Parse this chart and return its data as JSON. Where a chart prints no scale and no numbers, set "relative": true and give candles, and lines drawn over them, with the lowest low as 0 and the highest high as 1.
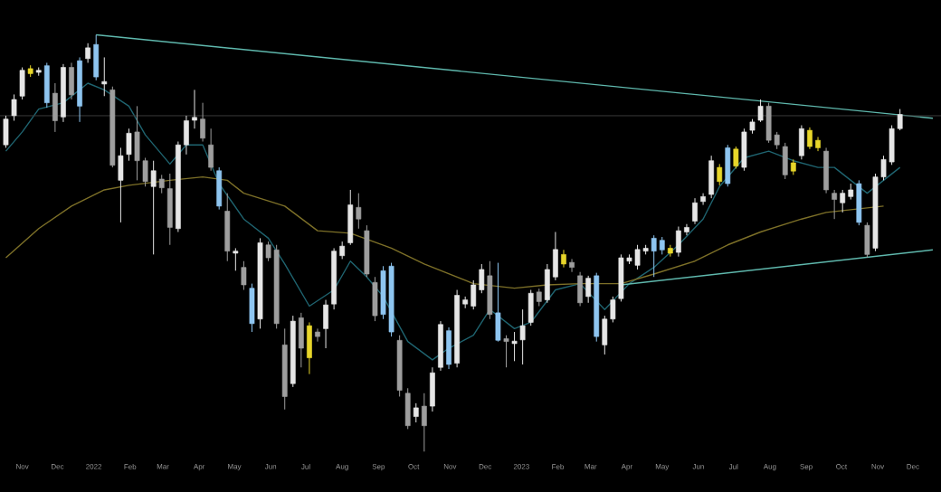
{
  "chart_data": {
    "type": "candlestick",
    "relative": true,
    "x": [
      "2021-10-18",
      "2021-10-25",
      "2021-11-01",
      "2021-11-08",
      "2021-11-15",
      "2021-11-22",
      "2021-11-29",
      "2021-12-06",
      "2021-12-13",
      "2021-12-20",
      "2021-12-27",
      "2022-01-03",
      "2022-01-10",
      "2022-01-17",
      "2022-01-24",
      "2022-01-31",
      "2022-02-07",
      "2022-02-14",
      "2022-02-21",
      "2022-02-28",
      "2022-03-07",
      "2022-03-14",
      "2022-03-21",
      "2022-03-28",
      "2022-04-04",
      "2022-04-11",
      "2022-04-18",
      "2022-04-25",
      "2022-05-02",
      "2022-05-09",
      "2022-05-16",
      "2022-05-23",
      "2022-05-30",
      "2022-06-06",
      "2022-06-13",
      "2022-06-20",
      "2022-06-27",
      "2022-07-04",
      "2022-07-11",
      "2022-07-18",
      "2022-07-25",
      "2022-08-01",
      "2022-08-08",
      "2022-08-15",
      "2022-08-22",
      "2022-08-29",
      "2022-09-05",
      "2022-09-12",
      "2022-09-19",
      "2022-09-26",
      "2022-10-03",
      "2022-10-10",
      "2022-10-17",
      "2022-10-24",
      "2022-10-31",
      "2022-11-07",
      "2022-11-14",
      "2022-11-21",
      "2022-11-28",
      "2022-12-05",
      "2022-12-12",
      "2022-12-19",
      "2022-12-26",
      "2023-01-02",
      "2023-01-09",
      "2023-01-16",
      "2023-01-23",
      "2023-01-30",
      "2023-02-06",
      "2023-02-13",
      "2023-02-20",
      "2023-02-27",
      "2023-03-06",
      "2023-03-13",
      "2023-03-20",
      "2023-03-27",
      "2023-04-03",
      "2023-04-10",
      "2023-04-17",
      "2023-04-24",
      "2023-05-01",
      "2023-05-08",
      "2023-05-15",
      "2023-05-22",
      "2023-05-29",
      "2023-06-05",
      "2023-06-12",
      "2023-06-19",
      "2023-06-26",
      "2023-07-03",
      "2023-07-10",
      "2023-07-17",
      "2023-07-24",
      "2023-07-31",
      "2023-08-07",
      "2023-08-14",
      "2023-08-21",
      "2023-08-28",
      "2023-09-04",
      "2023-09-11",
      "2023-09-18",
      "2023-09-25",
      "2023-10-02",
      "2023-10-09",
      "2023-10-16",
      "2023-10-23",
      "2023-10-30",
      "2023-11-06",
      "2023-11-13",
      "2023-11-20"
    ],
    "ohlc": [
      [
        0.736,
        0.806,
        0.729,
        0.798
      ],
      [
        0.806,
        0.857,
        0.794,
        0.845
      ],
      [
        0.853,
        0.922,
        0.845,
        0.915
      ],
      [
        0.907,
        0.927,
        0.899,
        0.919
      ],
      [
        0.91,
        0.922,
        0.902,
        0.915
      ],
      [
        0.926,
        0.933,
        0.825,
        0.837
      ],
      [
        0.86,
        0.884,
        0.767,
        0.794
      ],
      [
        0.803,
        0.93,
        0.791,
        0.922
      ],
      [
        0.922,
        0.933,
        0.845,
        0.856
      ],
      [
        0.829,
        0.946,
        0.791,
        0.938
      ],
      [
        0.943,
        0.98,
        0.933,
        0.969
      ],
      [
        0.977,
        1.0,
        0.891,
        0.899
      ],
      [
        0.882,
        0.946,
        0.853,
        0.888
      ],
      [
        0.868,
        0.876,
        0.682,
        0.687
      ],
      [
        0.651,
        0.729,
        0.55,
        0.71
      ],
      [
        0.713,
        0.775,
        0.698,
        0.764
      ],
      [
        0.767,
        0.829,
        0.651,
        0.698
      ],
      [
        0.698,
        0.705,
        0.636,
        0.648
      ],
      [
        0.636,
        0.698,
        0.473,
        0.674
      ],
      [
        0.654,
        0.664,
        0.62,
        0.633
      ],
      [
        0.631,
        0.667,
        0.496,
        0.538
      ],
      [
        0.535,
        0.744,
        0.527,
        0.736
      ],
      [
        0.736,
        0.806,
        0.713,
        0.794
      ],
      [
        0.795,
        0.868,
        0.775,
        0.802
      ],
      [
        0.798,
        0.837,
        0.744,
        0.752
      ],
      [
        0.736,
        0.775,
        0.674,
        0.682
      ],
      [
        0.674,
        0.682,
        0.581,
        0.589
      ],
      [
        0.577,
        0.62,
        0.457,
        0.481
      ],
      [
        0.476,
        0.488,
        0.434,
        0.481
      ],
      [
        0.442,
        0.457,
        0.388,
        0.4
      ],
      [
        0.392,
        0.403,
        0.287,
        0.307
      ],
      [
        0.318,
        0.512,
        0.295,
        0.501
      ],
      [
        0.496,
        0.504,
        0.457,
        0.465
      ],
      [
        0.484,
        0.496,
        0.295,
        0.307
      ],
      [
        0.256,
        0.295,
        0.101,
        0.132
      ],
      [
        0.163,
        0.326,
        0.155,
        0.313
      ],
      [
        0.321,
        0.333,
        0.202,
        0.248
      ],
      [
        0.225,
        0.31,
        0.186,
        0.302
      ],
      [
        0.287,
        0.295,
        0.264,
        0.276
      ],
      [
        0.295,
        0.364,
        0.248,
        0.352
      ],
      [
        0.354,
        0.488,
        0.341,
        0.481
      ],
      [
        0.47,
        0.504,
        0.462,
        0.493
      ],
      [
        0.501,
        0.628,
        0.496,
        0.592
      ],
      [
        0.586,
        0.62,
        0.535,
        0.558
      ],
      [
        0.53,
        0.543,
        0.419,
        0.426
      ],
      [
        0.406,
        0.419,
        0.313,
        0.326
      ],
      [
        0.434,
        0.445,
        0.318,
        0.329
      ],
      [
        0.445,
        0.453,
        0.276,
        0.287
      ],
      [
        0.267,
        0.279,
        0.132,
        0.147
      ],
      [
        0.14,
        0.152,
        0.054,
        0.062
      ],
      [
        0.084,
        0.116,
        0.07,
        0.105
      ],
      [
        0.109,
        0.14,
        0.0,
        0.062
      ],
      [
        0.109,
        0.202,
        0.096,
        0.189
      ],
      [
        0.202,
        0.313,
        0.194,
        0.305
      ],
      [
        0.29,
        0.298,
        0.198,
        0.209
      ],
      [
        0.212,
        0.388,
        0.202,
        0.375
      ],
      [
        0.354,
        0.372,
        0.344,
        0.364
      ],
      [
        0.349,
        0.411,
        0.341,
        0.4
      ],
      [
        0.388,
        0.45,
        0.38,
        0.437
      ],
      [
        0.422,
        0.457,
        0.318,
        0.329
      ],
      [
        0.333,
        0.453,
        0.264,
        0.267
      ],
      [
        0.271,
        0.279,
        0.202,
        0.264
      ],
      [
        0.259,
        0.287,
        0.217,
        0.265
      ],
      [
        0.268,
        0.341,
        0.209,
        0.302
      ],
      [
        0.31,
        0.388,
        0.302,
        0.38
      ],
      [
        0.383,
        0.391,
        0.349,
        0.36
      ],
      [
        0.364,
        0.45,
        0.357,
        0.437
      ],
      [
        0.419,
        0.527,
        0.411,
        0.485
      ],
      [
        0.45,
        0.484,
        0.442,
        0.473
      ],
      [
        0.454,
        0.462,
        0.431,
        0.442
      ],
      [
        0.422,
        0.431,
        0.349,
        0.357
      ],
      [
        0.372,
        0.422,
        0.357,
        0.416
      ],
      [
        0.422,
        0.429,
        0.264,
        0.276
      ],
      [
        0.256,
        0.326,
        0.233,
        0.318
      ],
      [
        0.318,
        0.372,
        0.31,
        0.364
      ],
      [
        0.367,
        0.473,
        0.36,
        0.465
      ],
      [
        0.457,
        0.473,
        0.45,
        0.465
      ],
      [
        0.447,
        0.496,
        0.437,
        0.485
      ],
      [
        0.481,
        0.496,
        0.473,
        0.488
      ],
      [
        0.512,
        0.519,
        0.419,
        0.481
      ],
      [
        0.507,
        0.515,
        0.473,
        0.484
      ],
      [
        0.476,
        0.496,
        0.468,
        0.488
      ],
      [
        0.478,
        0.54,
        0.468,
        0.53
      ],
      [
        0.527,
        0.546,
        0.519,
        0.538
      ],
      [
        0.553,
        0.608,
        0.546,
        0.597
      ],
      [
        0.6,
        0.62,
        0.592,
        0.612
      ],
      [
        0.617,
        0.71,
        0.608,
        0.698
      ],
      [
        0.648,
        0.69,
        0.639,
        0.682
      ],
      [
        0.729,
        0.736,
        0.636,
        0.643
      ],
      [
        0.685,
        0.732,
        0.679,
        0.726
      ],
      [
        0.682,
        0.775,
        0.674,
        0.767
      ],
      [
        0.771,
        0.798,
        0.763,
        0.791
      ],
      [
        0.795,
        0.845,
        0.791,
        0.829
      ],
      [
        0.829,
        0.837,
        0.741,
        0.747
      ],
      [
        0.76,
        0.767,
        0.726,
        0.736
      ],
      [
        0.732,
        0.741,
        0.654,
        0.664
      ],
      [
        0.673,
        0.701,
        0.664,
        0.693
      ],
      [
        0.71,
        0.783,
        0.701,
        0.775
      ],
      [
        0.732,
        0.778,
        0.726,
        0.771
      ],
      [
        0.729,
        0.755,
        0.721,
        0.747
      ],
      [
        0.721,
        0.729,
        0.62,
        0.628
      ],
      [
        0.62,
        0.628,
        0.558,
        0.605
      ],
      [
        0.597,
        0.628,
        0.574,
        0.62
      ],
      [
        0.612,
        0.643,
        0.605,
        0.628
      ],
      [
        0.643,
        0.651,
        0.543,
        0.55
      ],
      [
        0.543,
        0.55,
        0.465,
        0.473
      ],
      [
        0.488,
        0.667,
        0.481,
        0.659
      ],
      [
        0.659,
        0.71,
        0.651,
        0.701
      ],
      [
        0.695,
        0.783,
        0.688,
        0.775
      ],
      [
        0.775,
        0.822,
        0.771,
        0.809
      ]
    ],
    "colors": [
      "#e6e6e6",
      "#e6e6e6",
      "#e6e6e6",
      "#e8d62a",
      "#e6e6e6",
      "#8ec5f0",
      "#9e9e9e",
      "#e6e6e6",
      "#9e9e9e",
      "#8ec5f0",
      "#e6e6e6",
      "#8ec5f0",
      "#e6e6e6",
      "#9e9e9e",
      "#e6e6e6",
      "#e6e6e6",
      "#9e9e9e",
      "#9e9e9e",
      "#e6e6e6",
      "#9e9e9e",
      "#9e9e9e",
      "#e6e6e6",
      "#e6e6e6",
      "#e6e6e6",
      "#9e9e9e",
      "#9e9e9e",
      "#8ec5f0",
      "#9e9e9e",
      "#e6e6e6",
      "#9e9e9e",
      "#8ec5f0",
      "#e6e6e6",
      "#9e9e9e",
      "#9e9e9e",
      "#9e9e9e",
      "#e6e6e6",
      "#9e9e9e",
      "#e8d62a",
      "#9e9e9e",
      "#e6e6e6",
      "#e6e6e6",
      "#e6e6e6",
      "#e6e6e6",
      "#9e9e9e",
      "#9e9e9e",
      "#9e9e9e",
      "#8ec5f0",
      "#8ec5f0",
      "#9e9e9e",
      "#9e9e9e",
      "#e6e6e6",
      "#9e9e9e",
      "#e6e6e6",
      "#e6e6e6",
      "#8ec5f0",
      "#e6e6e6",
      "#e6e6e6",
      "#e6e6e6",
      "#e6e6e6",
      "#9e9e9e",
      "#8ec5f0",
      "#9e9e9e",
      "#e6e6e6",
      "#e6e6e6",
      "#e6e6e6",
      "#9e9e9e",
      "#e6e6e6",
      "#e6e6e6",
      "#e8d62a",
      "#9e9e9e",
      "#9e9e9e",
      "#e6e6e6",
      "#8ec5f0",
      "#e6e6e6",
      "#e6e6e6",
      "#e6e6e6",
      "#e6e6e6",
      "#e6e6e6",
      "#e6e6e6",
      "#8ec5f0",
      "#8ec5f0",
      "#e8d62a",
      "#e6e6e6",
      "#e6e6e6",
      "#e6e6e6",
      "#e6e6e6",
      "#e6e6e6",
      "#e8d62a",
      "#8ec5f0",
      "#e8d62a",
      "#e6e6e6",
      "#e6e6e6",
      "#e6e6e6",
      "#9e9e9e",
      "#9e9e9e",
      "#9e9e9e",
      "#e8d62a",
      "#e6e6e6",
      "#e8d62a",
      "#e8d62a",
      "#9e9e9e",
      "#9e9e9e",
      "#e6e6e6",
      "#e6e6e6",
      "#8ec5f0",
      "#9e9e9e",
      "#e6e6e6",
      "#e6e6e6",
      "#e6e6e6",
      "#e6e6e6"
    ],
    "series": [
      {
        "type": "line",
        "color": "#1f6470",
        "x": [
          "2021-10-18",
          "2021-11-01",
          "2021-11-15",
          "2021-12-06",
          "2021-12-27",
          "2022-01-10",
          "2022-01-31",
          "2022-02-14",
          "2022-03-07",
          "2022-03-21",
          "2022-04-04",
          "2022-04-18",
          "2022-05-09",
          "2022-05-30",
          "2022-06-13",
          "2022-07-04",
          "2022-07-25",
          "2022-08-08",
          "2022-08-22",
          "2022-09-05",
          "2022-09-26",
          "2022-10-17",
          "2022-10-31",
          "2022-11-21",
          "2022-12-05",
          "2022-12-26",
          "2023-01-09",
          "2023-01-30",
          "2023-02-20",
          "2023-03-13",
          "2023-04-03",
          "2023-04-24",
          "2023-05-15",
          "2023-06-05",
          "2023-06-19",
          "2023-07-10",
          "2023-07-31",
          "2023-08-21",
          "2023-09-11",
          "2023-09-25",
          "2023-10-09",
          "2023-10-23",
          "2023-11-06",
          "2023-11-20"
        ],
        "values": [
          0.721,
          0.767,
          0.822,
          0.837,
          0.884,
          0.868,
          0.829,
          0.76,
          0.69,
          0.736,
          0.736,
          0.643,
          0.558,
          0.512,
          0.45,
          0.349,
          0.388,
          0.457,
          0.419,
          0.372,
          0.264,
          0.22,
          0.248,
          0.279,
          0.341,
          0.295,
          0.31,
          0.388,
          0.403,
          0.341,
          0.403,
          0.442,
          0.496,
          0.558,
          0.636,
          0.705,
          0.721,
          0.698,
          0.682,
          0.682,
          0.651,
          0.62,
          0.651,
          0.682
        ]
      },
      {
        "type": "line",
        "color": "#7d7028",
        "x": [
          "2021-10-18",
          "2021-11-15",
          "2021-12-13",
          "2022-01-10",
          "2022-01-31",
          "2022-03-07",
          "2022-04-04",
          "2022-04-25",
          "2022-05-09",
          "2022-06-13",
          "2022-07-11",
          "2022-08-08",
          "2022-09-12",
          "2022-10-10",
          "2022-11-14",
          "2022-11-21",
          "2022-12-26",
          "2023-01-23",
          "2023-02-20",
          "2023-03-27",
          "2023-04-24",
          "2023-05-29",
          "2023-06-26",
          "2023-07-24",
          "2023-08-28",
          "2023-09-18",
          "2023-11-06"
        ],
        "values": [
          0.465,
          0.535,
          0.589,
          0.628,
          0.639,
          0.651,
          0.659,
          0.651,
          0.62,
          0.589,
          0.53,
          0.524,
          0.488,
          0.45,
          0.411,
          0.403,
          0.392,
          0.4,
          0.403,
          0.403,
          0.426,
          0.457,
          0.496,
          0.527,
          0.558,
          0.574,
          0.589
        ]
      },
      {
        "type": "line",
        "color": "#5fb8ad",
        "x": [
          "2022-01-03",
          "2023-12-18"
        ],
        "values": [
          1.0,
          0.8
        ]
      },
      {
        "type": "line",
        "color": "#5fb8ad",
        "x": [
          "2023-03-27",
          "2023-12-18"
        ],
        "values": [
          0.4,
          0.484
        ]
      }
    ],
    "ref_lines": [
      {
        "axis": "y",
        "value": 0.806,
        "color": "#3a3a3a"
      }
    ],
    "xlim": [
      "2021-10-13",
      "2023-12-25"
    ],
    "xticks": [
      {
        "value": "2021-11-01",
        "label": "Nov"
      },
      {
        "value": "2021-12-01",
        "label": "Dec"
      },
      {
        "value": "2022-01-01",
        "label": "2022"
      },
      {
        "value": "2022-02-01",
        "label": "Feb"
      },
      {
        "value": "2022-03-01",
        "label": "Mar"
      },
      {
        "value": "2022-04-01",
        "label": "Apr"
      },
      {
        "value": "2022-05-01",
        "label": "May"
      },
      {
        "value": "2022-06-01",
        "label": "Jun"
      },
      {
        "value": "2022-07-01",
        "label": "Jul"
      },
      {
        "value": "2022-08-01",
        "label": "Aug"
      },
      {
        "value": "2022-09-01",
        "label": "Sep"
      },
      {
        "value": "2022-10-01",
        "label": "Oct"
      },
      {
        "value": "2022-11-01",
        "label": "Nov"
      },
      {
        "value": "2022-12-01",
        "label": "Dec"
      },
      {
        "value": "2023-01-01",
        "label": "2023"
      },
      {
        "value": "2023-02-01",
        "label": "Feb"
      },
      {
        "value": "2023-03-01",
        "label": "Mar"
      },
      {
        "value": "2023-04-01",
        "label": "Apr"
      },
      {
        "value": "2023-05-01",
        "label": "May"
      },
      {
        "value": "2023-06-01",
        "label": "Jun"
      },
      {
        "value": "2023-07-01",
        "label": "Jul"
      },
      {
        "value": "2023-08-01",
        "label": "Aug"
      },
      {
        "value": "2023-09-01",
        "label": "Sep"
      },
      {
        "value": "2023-10-01",
        "label": "Oct"
      },
      {
        "value": "2023-11-01",
        "label": "Nov"
      },
      {
        "value": "2023-12-01",
        "label": "Dec"
      }
    ]
  }
}
